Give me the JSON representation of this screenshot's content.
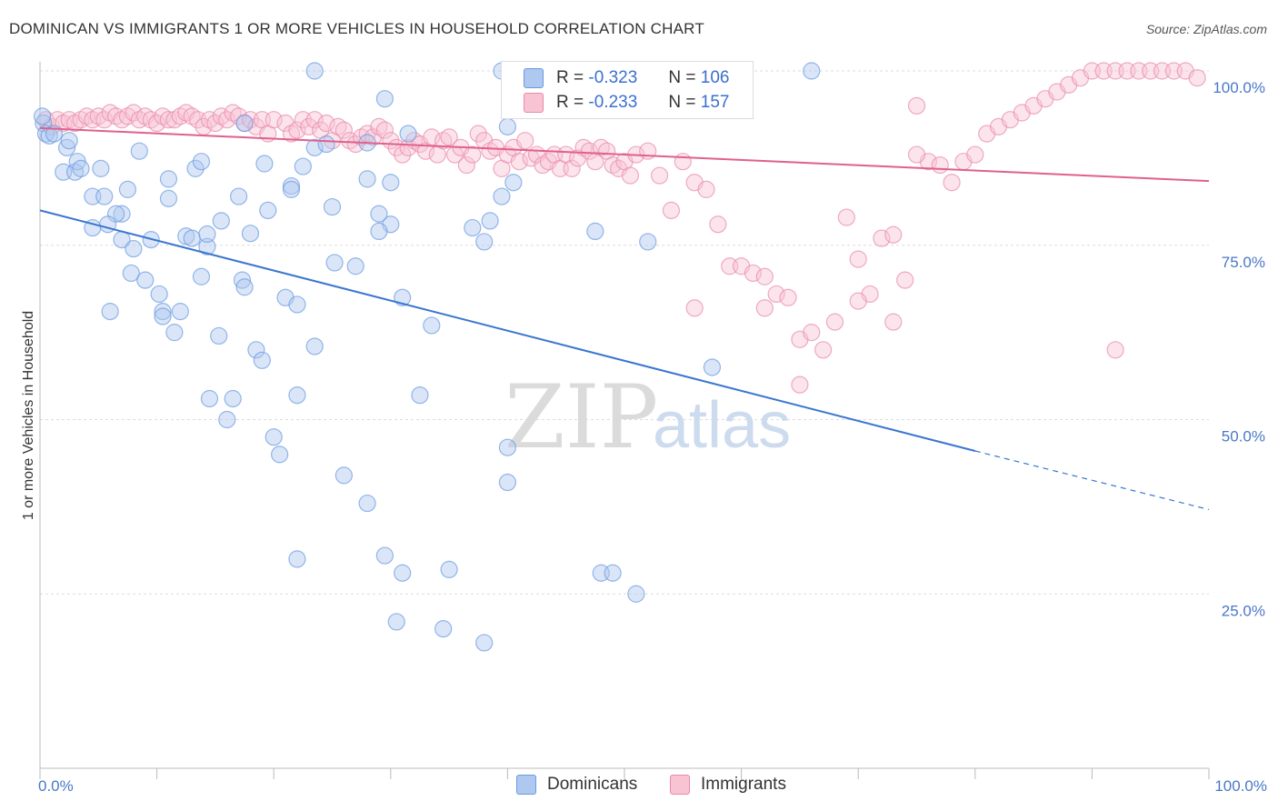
{
  "title": "DOMINICAN VS IMMIGRANTS 1 OR MORE VEHICLES IN HOUSEHOLD CORRELATION CHART",
  "source": "Source: ZipAtlas.com",
  "watermark": {
    "zip": "ZIP",
    "atlas": "atlas"
  },
  "legend": {
    "r_label": "R =",
    "n_label": "N =",
    "rows": [
      {
        "r": "-0.323",
        "n": "106",
        "fill": "#aec8f0",
        "stroke": "#6a9ae0"
      },
      {
        "r": "-0.233",
        "n": "157",
        "fill": "#f8c4d4",
        "stroke": "#e88aa8"
      }
    ]
  },
  "bottom_legend": [
    {
      "label": "Dominicans",
      "fill": "#aec8f0",
      "stroke": "#6a9ae0"
    },
    {
      "label": "Immigrants",
      "fill": "#f8c4d4",
      "stroke": "#e88aa8"
    }
  ],
  "chart_data": {
    "type": "scatter",
    "title": "DOMINICAN VS IMMIGRANTS 1 OR MORE VEHICLES IN HOUSEHOLD CORRELATION CHART",
    "xlabel": "",
    "ylabel": "1 or more Vehicles in Household",
    "xlim": [
      0,
      100
    ],
    "ylim": [
      0,
      100
    ],
    "x_tick_labels": [
      "0.0%",
      "100.0%"
    ],
    "y_ticks": [
      25,
      50,
      75,
      100
    ],
    "y_tick_labels": [
      "25.0%",
      "50.0%",
      "75.0%",
      "100.0%"
    ],
    "grid": true,
    "legend_position": "top-center",
    "series": [
      {
        "name": "Dominicans",
        "color": "#6a9ae0",
        "fill": "#aec8f0",
        "trend": {
          "x0": 0,
          "y0": 80.0,
          "x1": 80,
          "y1": 45.5,
          "dash_to_x": 100,
          "dash_to_y": 37.1
        },
        "points": [
          [
            0.3,
            92.5
          ],
          [
            0.5,
            91
          ],
          [
            0.8,
            90.7
          ],
          [
            1.2,
            91
          ],
          [
            2.3,
            89
          ],
          [
            2.5,
            90
          ],
          [
            2,
            85.5
          ],
          [
            3,
            85.5
          ],
          [
            3.2,
            87
          ],
          [
            3.5,
            86
          ],
          [
            5.2,
            86
          ],
          [
            4.5,
            82
          ],
          [
            5.5,
            82
          ],
          [
            7.5,
            83
          ],
          [
            8.5,
            88.5
          ],
          [
            7,
            79.5
          ],
          [
            6.5,
            79.5
          ],
          [
            4.5,
            77.5
          ],
          [
            5.8,
            78
          ],
          [
            7,
            75.8
          ],
          [
            8,
            74.5
          ],
          [
            9.5,
            75.8
          ],
          [
            7.8,
            71
          ],
          [
            9,
            70
          ],
          [
            10.2,
            68
          ],
          [
            12,
            65.5
          ],
          [
            10.5,
            65.5
          ],
          [
            10.5,
            64.8
          ],
          [
            11.5,
            62.5
          ],
          [
            6,
            65.5
          ],
          [
            11,
            81.7
          ],
          [
            11,
            84.5
          ],
          [
            12.5,
            76.3
          ],
          [
            13,
            76
          ],
          [
            13.3,
            86
          ],
          [
            13.8,
            87
          ],
          [
            14.3,
            74.8
          ],
          [
            14.3,
            76.6
          ],
          [
            13.8,
            70.5
          ],
          [
            15.5,
            78.5
          ],
          [
            17,
            82
          ],
          [
            17.5,
            92.5
          ],
          [
            18,
            76.7
          ],
          [
            19.2,
            86.7
          ],
          [
            19.5,
            80
          ],
          [
            17.3,
            70
          ],
          [
            17.5,
            69
          ],
          [
            15.3,
            62
          ],
          [
            16.5,
            53
          ],
          [
            14.5,
            53
          ],
          [
            16,
            50
          ],
          [
            18.5,
            60
          ],
          [
            19,
            58.5
          ],
          [
            20,
            47.5
          ],
          [
            20.5,
            45
          ],
          [
            21,
            67.5
          ],
          [
            22,
            66.5
          ],
          [
            21.5,
            83.5
          ],
          [
            21.5,
            83
          ],
          [
            22.5,
            86.3
          ],
          [
            23.5,
            89
          ],
          [
            24.5,
            89.5
          ],
          [
            25,
            80.5
          ],
          [
            25.2,
            72.5
          ],
          [
            23.5,
            60.5
          ],
          [
            22,
            53.5
          ],
          [
            27,
            72
          ],
          [
            28,
            89.7
          ],
          [
            28,
            84.5
          ],
          [
            30,
            78
          ],
          [
            31,
            67.5
          ],
          [
            29,
            79.5
          ],
          [
            29,
            77
          ],
          [
            30,
            84
          ],
          [
            31.5,
            91
          ],
          [
            33.5,
            63.5
          ],
          [
            32.5,
            53.5
          ],
          [
            26,
            42
          ],
          [
            28,
            38
          ],
          [
            22,
            30
          ],
          [
            29.5,
            30.5
          ],
          [
            31,
            28
          ],
          [
            35,
            28.5
          ],
          [
            30.5,
            21
          ],
          [
            34.5,
            20
          ],
          [
            40,
            46
          ],
          [
            40,
            41
          ],
          [
            38,
            18
          ],
          [
            37,
            77.5
          ],
          [
            38,
            75.5
          ],
          [
            38.5,
            78.5
          ],
          [
            39.5,
            82
          ],
          [
            40.5,
            84
          ],
          [
            47.5,
            77
          ],
          [
            52,
            75.5
          ],
          [
            57.5,
            57.5
          ],
          [
            48,
            28
          ],
          [
            49,
            28
          ],
          [
            51,
            25
          ],
          [
            29.5,
            96
          ],
          [
            39.5,
            100
          ],
          [
            47,
            100
          ],
          [
            66,
            100
          ],
          [
            23.5,
            100
          ],
          [
            40,
            92
          ],
          [
            0.2,
            93.5
          ]
        ]
      },
      {
        "name": "Immigrants",
        "color": "#e88aa8",
        "fill": "#f8c4d4",
        "trend": {
          "x0": 0,
          "y0": 91.8,
          "x1": 100,
          "y1": 84.2
        },
        "points": [
          [
            0.5,
            93
          ],
          [
            1,
            92
          ],
          [
            1.5,
            93
          ],
          [
            2,
            92.5
          ],
          [
            2.5,
            93
          ],
          [
            3,
            92.5
          ],
          [
            3.5,
            93
          ],
          [
            4,
            93.5
          ],
          [
            4.5,
            93
          ],
          [
            5,
            93.5
          ],
          [
            5.5,
            93
          ],
          [
            6,
            94
          ],
          [
            6.5,
            93.5
          ],
          [
            7,
            93
          ],
          [
            7.5,
            93.5
          ],
          [
            8,
            94
          ],
          [
            8.5,
            93
          ],
          [
            9,
            93.5
          ],
          [
            9.5,
            93
          ],
          [
            10,
            92.5
          ],
          [
            10.5,
            93.5
          ],
          [
            11,
            93
          ],
          [
            11.5,
            93
          ],
          [
            12,
            93.5
          ],
          [
            12.5,
            94
          ],
          [
            13,
            93.5
          ],
          [
            13.5,
            93
          ],
          [
            14,
            92
          ],
          [
            14.5,
            93
          ],
          [
            15,
            92.5
          ],
          [
            15.5,
            93.5
          ],
          [
            16,
            93
          ],
          [
            16.5,
            94
          ],
          [
            17,
            93.5
          ],
          [
            17.5,
            92.5
          ],
          [
            18,
            93
          ],
          [
            18.5,
            92
          ],
          [
            19,
            93
          ],
          [
            19.5,
            91
          ],
          [
            20,
            93
          ],
          [
            21,
            92.5
          ],
          [
            21.5,
            91
          ],
          [
            22,
            91.5
          ],
          [
            22.5,
            93
          ],
          [
            23,
            92
          ],
          [
            23.5,
            93
          ],
          [
            24,
            91.5
          ],
          [
            24.5,
            92.5
          ],
          [
            25,
            90
          ],
          [
            25.5,
            92
          ],
          [
            26,
            91.5
          ],
          [
            26.5,
            90
          ],
          [
            27,
            89.5
          ],
          [
            27.5,
            90.5
          ],
          [
            28,
            91
          ],
          [
            28.5,
            90.5
          ],
          [
            29,
            92
          ],
          [
            29.5,
            91.5
          ],
          [
            30,
            90
          ],
          [
            30.5,
            89
          ],
          [
            31,
            88
          ],
          [
            31.5,
            89
          ],
          [
            32,
            90
          ],
          [
            32.5,
            89.5
          ],
          [
            33,
            88.5
          ],
          [
            33.5,
            90.5
          ],
          [
            34,
            88
          ],
          [
            34.5,
            90
          ],
          [
            35,
            90.5
          ],
          [
            35.5,
            88
          ],
          [
            36,
            89
          ],
          [
            36.5,
            86.5
          ],
          [
            37,
            88
          ],
          [
            37.5,
            91
          ],
          [
            38,
            90
          ],
          [
            38.5,
            88.5
          ],
          [
            39,
            89
          ],
          [
            39.5,
            86
          ],
          [
            40,
            88
          ],
          [
            40.5,
            89
          ],
          [
            41,
            87
          ],
          [
            41.5,
            90
          ],
          [
            42,
            87.5
          ],
          [
            42.5,
            88
          ],
          [
            43,
            86.5
          ],
          [
            43.5,
            87
          ],
          [
            44,
            88
          ],
          [
            44.5,
            86
          ],
          [
            45,
            88
          ],
          [
            45.5,
            86
          ],
          [
            46,
            87.5
          ],
          [
            46.5,
            89
          ],
          [
            47,
            88.5
          ],
          [
            47.5,
            87
          ],
          [
            48,
            89
          ],
          [
            48.5,
            88.5
          ],
          [
            49,
            86.5
          ],
          [
            49.5,
            86
          ],
          [
            50,
            87
          ],
          [
            50.5,
            85
          ],
          [
            51,
            88
          ],
          [
            52,
            88.5
          ],
          [
            53,
            85
          ],
          [
            54,
            80
          ],
          [
            55,
            87
          ],
          [
            56,
            84
          ],
          [
            57,
            83
          ],
          [
            58,
            78
          ],
          [
            59,
            72
          ],
          [
            60,
            72
          ],
          [
            61,
            71
          ],
          [
            62,
            70.5
          ],
          [
            63,
            68
          ],
          [
            64,
            67.5
          ],
          [
            65,
            61.5
          ],
          [
            66,
            62.5
          ],
          [
            67,
            60
          ],
          [
            68,
            64
          ],
          [
            69,
            79
          ],
          [
            70,
            73
          ],
          [
            71,
            68
          ],
          [
            72,
            76
          ],
          [
            73,
            64
          ],
          [
            74,
            70
          ],
          [
            75,
            95
          ],
          [
            76,
            87
          ],
          [
            77,
            86.5
          ],
          [
            78,
            84
          ],
          [
            79,
            87
          ],
          [
            80,
            88
          ],
          [
            81,
            91
          ],
          [
            82,
            92
          ],
          [
            83,
            93
          ],
          [
            84,
            94
          ],
          [
            85,
            95
          ],
          [
            86,
            96
          ],
          [
            87,
            97
          ],
          [
            88,
            98
          ],
          [
            89,
            99
          ],
          [
            90,
            100
          ],
          [
            91,
            100
          ],
          [
            92,
            100
          ],
          [
            93,
            100
          ],
          [
            94,
            100
          ],
          [
            95,
            100
          ],
          [
            96,
            100
          ],
          [
            97,
            100
          ],
          [
            98,
            100
          ],
          [
            99,
            99
          ],
          [
            92,
            60
          ],
          [
            50.5,
            96
          ],
          [
            65,
            55
          ],
          [
            56,
            66
          ],
          [
            62,
            66
          ],
          [
            70,
            67
          ],
          [
            73,
            76.5
          ],
          [
            75,
            88
          ]
        ]
      }
    ]
  }
}
